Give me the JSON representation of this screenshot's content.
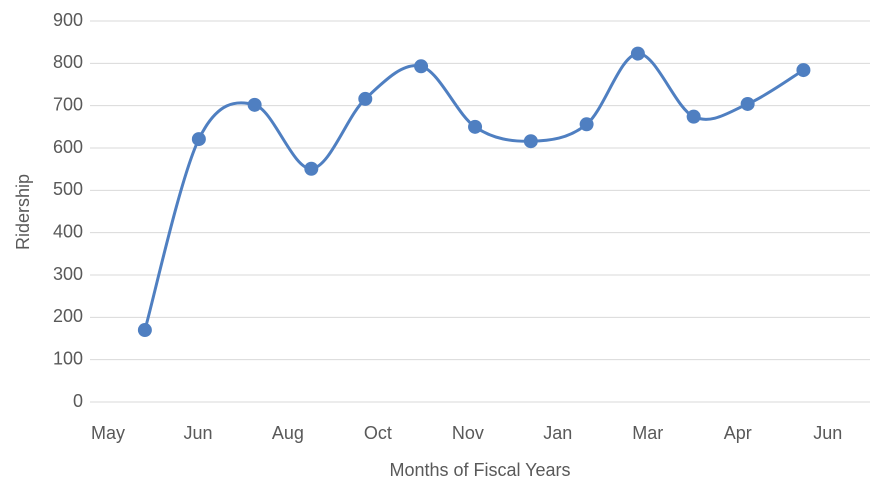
{
  "chart_data": {
    "type": "line",
    "xlabel": "Months of Fiscal Years",
    "ylabel": "Ridership",
    "x": [
      0.41,
      1.01,
      1.63,
      2.26,
      2.86,
      3.48,
      4.08,
      4.7,
      5.32,
      5.89,
      6.51,
      7.11,
      7.73
    ],
    "series": [
      {
        "name": "Ridership",
        "color": "#4f7fc1",
        "values": [
          170,
          621,
          702,
          551,
          716,
          793,
          650,
          616,
          656,
          823,
          674,
          704,
          784
        ]
      }
    ],
    "xlim": [
      -0.2,
      8.47
    ],
    "xticks": [
      {
        "value": 0,
        "label": "May"
      },
      {
        "value": 1,
        "label": "Jun"
      },
      {
        "value": 2,
        "label": "Aug"
      },
      {
        "value": 3,
        "label": "Oct"
      },
      {
        "value": 4,
        "label": "Nov"
      },
      {
        "value": 5,
        "label": "Jan"
      },
      {
        "value": 6,
        "label": "Mar"
      },
      {
        "value": 7,
        "label": "Apr"
      },
      {
        "value": 8,
        "label": "Jun"
      }
    ],
    "ylim": [
      0,
      900
    ],
    "yticks": [
      0,
      100,
      200,
      300,
      400,
      500,
      600,
      700,
      800,
      900
    ],
    "grid": true,
    "smooth": true
  }
}
